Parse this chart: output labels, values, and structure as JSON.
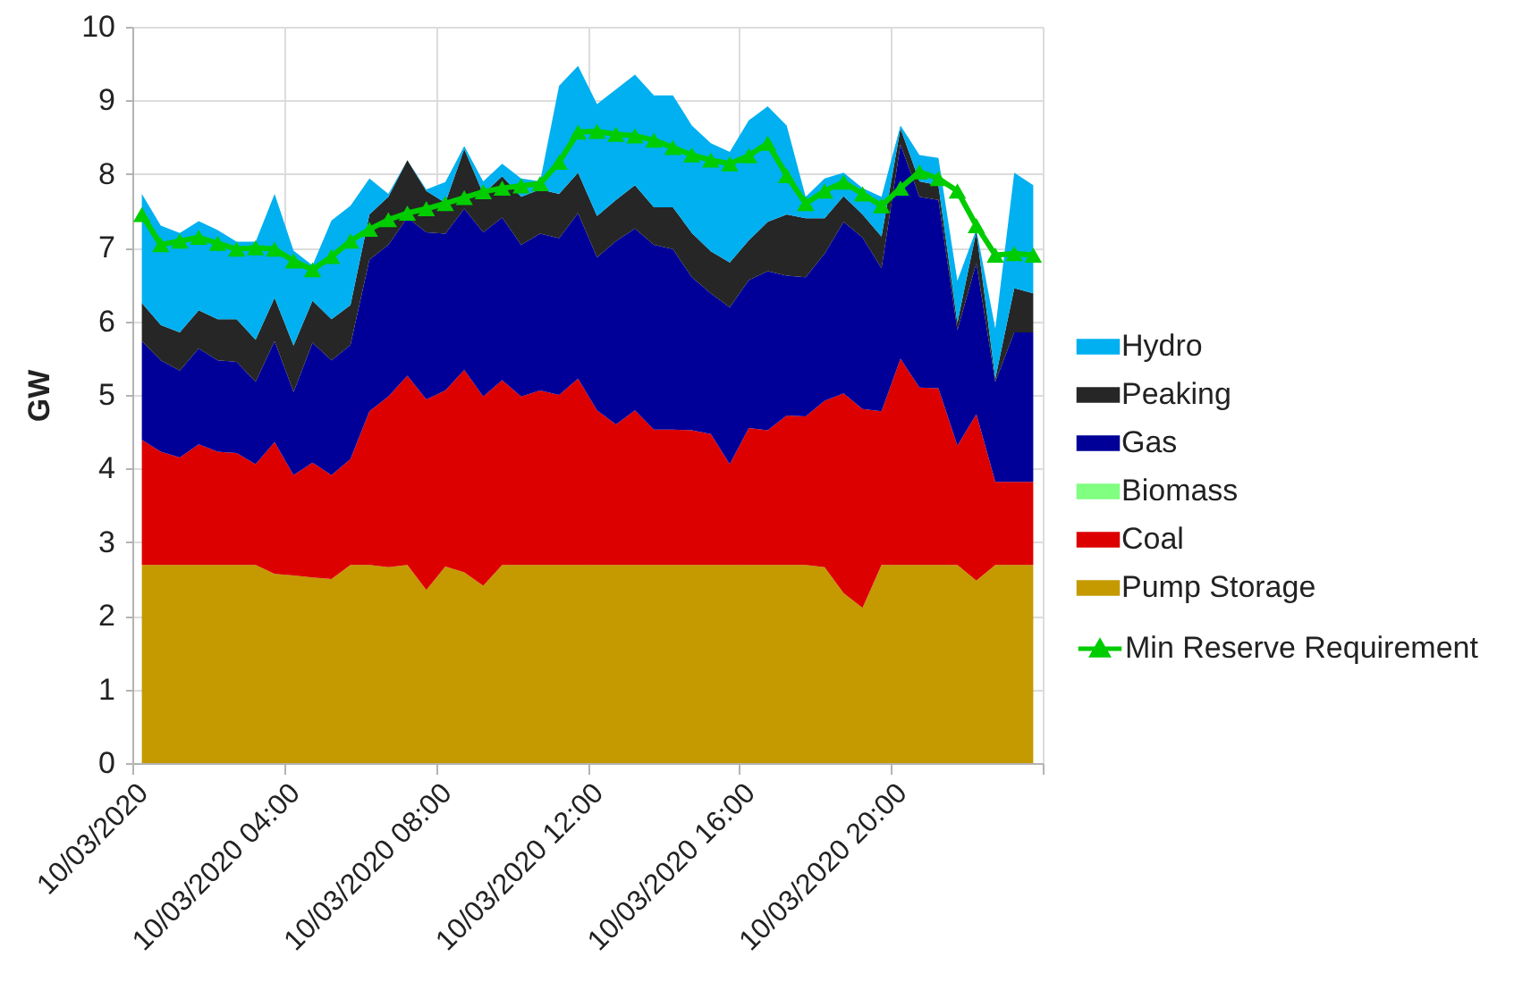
{
  "chart_data": {
    "type": "area",
    "stacked": true,
    "ylabel": "GW",
    "x": [
      "2020-03-10T00:15",
      "2020-03-10T00:45",
      "2020-03-10T01:15",
      "2020-03-10T01:45",
      "2020-03-10T02:15",
      "2020-03-10T02:45",
      "2020-03-10T03:15",
      "2020-03-10T03:45",
      "2020-03-10T04:15",
      "2020-03-10T04:45",
      "2020-03-10T05:15",
      "2020-03-10T05:45",
      "2020-03-10T06:15",
      "2020-03-10T06:45",
      "2020-03-10T07:15",
      "2020-03-10T07:45",
      "2020-03-10T08:15",
      "2020-03-10T08:45",
      "2020-03-10T09:15",
      "2020-03-10T09:45",
      "2020-03-10T10:15",
      "2020-03-10T10:45",
      "2020-03-10T11:15",
      "2020-03-10T11:45",
      "2020-03-10T12:15",
      "2020-03-10T12:45",
      "2020-03-10T13:15",
      "2020-03-10T13:45",
      "2020-03-10T14:15",
      "2020-03-10T14:45",
      "2020-03-10T15:15",
      "2020-03-10T15:45",
      "2020-03-10T16:15",
      "2020-03-10T16:45",
      "2020-03-10T17:15",
      "2020-03-10T17:45",
      "2020-03-10T18:15",
      "2020-03-10T18:45",
      "2020-03-10T19:15",
      "2020-03-10T19:45",
      "2020-03-10T20:15",
      "2020-03-10T20:45",
      "2020-03-10T21:15",
      "2020-03-10T21:45",
      "2020-03-10T22:15",
      "2020-03-10T22:45",
      "2020-03-10T23:15",
      "2020-03-10T23:45"
    ],
    "series": [
      {
        "name": "Pump Storage",
        "color": "#c49a00",
        "values": [
          2.69,
          2.69,
          2.69,
          2.69,
          2.69,
          2.69,
          2.69,
          2.57,
          2.55,
          2.52,
          2.5,
          2.69,
          2.69,
          2.66,
          2.69,
          2.35,
          2.67,
          2.59,
          2.41,
          2.69,
          2.69,
          2.69,
          2.69,
          2.69,
          2.69,
          2.69,
          2.69,
          2.69,
          2.69,
          2.69,
          2.69,
          2.69,
          2.69,
          2.69,
          2.69,
          2.69,
          2.66,
          2.31,
          2.11,
          2.69,
          2.69,
          2.69,
          2.69,
          2.69,
          2.48,
          2.69,
          2.69,
          2.69
        ]
      },
      {
        "name": "Coal",
        "color": "#dc0000",
        "values": [
          1.7,
          1.54,
          1.46,
          1.64,
          1.54,
          1.52,
          1.37,
          1.79,
          1.36,
          1.56,
          1.41,
          1.44,
          2.09,
          2.32,
          2.57,
          2.59,
          2.39,
          2.75,
          2.57,
          2.51,
          2.29,
          2.37,
          2.31,
          2.53,
          2.1,
          1.91,
          2.1,
          1.84,
          1.84,
          1.83,
          1.78,
          1.37,
          1.86,
          1.83,
          2.03,
          2.02,
          2.26,
          2.71,
          2.7,
          2.09,
          2.8,
          2.41,
          2.4,
          1.62,
          2.26,
          1.13,
          1.13,
          1.13
        ]
      },
      {
        "name": "Biomass",
        "color": "#80ff80",
        "values": [
          null,
          null,
          null,
          null,
          null,
          null,
          null,
          null,
          null,
          null,
          null,
          null,
          null,
          null,
          null,
          null,
          null,
          null,
          null,
          null,
          null,
          null,
          null,
          null,
          null,
          null,
          null,
          null,
          null,
          null,
          null,
          null,
          null,
          null,
          null,
          null,
          null,
          null,
          null,
          null,
          null,
          null,
          null,
          null,
          null,
          null,
          null,
          null
        ]
      },
      {
        "name": "Gas",
        "color": "#000099",
        "values": [
          1.34,
          1.24,
          1.18,
          1.3,
          1.24,
          1.24,
          1.12,
          1.37,
          1.13,
          1.63,
          1.56,
          1.55,
          2.06,
          2.06,
          2.15,
          2.27,
          2.13,
          2.19,
          2.23,
          2.21,
          2.06,
          2.13,
          2.13,
          2.25,
          2.08,
          2.49,
          2.47,
          2.51,
          2.45,
          2.08,
          1.91,
          2.13,
          2.01,
          2.16,
          1.9,
          1.89,
          2.0,
          2.33,
          2.33,
          1.94,
          2.91,
          2.59,
          2.56,
          1.57,
          2.05,
          1.36,
          2.03,
          2.03
        ]
      },
      {
        "name": "Peaking",
        "color": "#262626",
        "values": [
          0.52,
          0.48,
          0.52,
          0.52,
          0.56,
          0.58,
          0.57,
          0.59,
          0.63,
          0.57,
          0.56,
          0.54,
          0.61,
          0.65,
          0.78,
          0.56,
          0.42,
          0.81,
          0.52,
          0.56,
          0.65,
          0.6,
          0.6,
          0.55,
          0.56,
          0.56,
          0.59,
          0.51,
          0.57,
          0.6,
          0.57,
          0.61,
          0.54,
          0.67,
          0.83,
          0.8,
          0.48,
          0.35,
          0.31,
          0.43,
          0.22,
          0.21,
          0.2,
          0.1,
          0.43,
          0.04,
          0.6,
          0.53
        ]
      },
      {
        "name": "Hydro",
        "color": "#00b0f0",
        "values": [
          1.48,
          1.35,
          1.35,
          1.21,
          1.21,
          1.05,
          1.33,
          1.41,
          1.29,
          0.48,
          1.34,
          1.35,
          0.49,
          0.04,
          0.0,
          0.02,
          0.28,
          0.04,
          0.17,
          0.17,
          0.25,
          0.11,
          1.47,
          1.45,
          1.52,
          1.5,
          1.5,
          1.52,
          1.52,
          1.46,
          1.47,
          1.5,
          1.63,
          1.57,
          1.21,
          0.29,
          0.54,
          0.32,
          0.36,
          0.54,
          0.04,
          0.36,
          0.37,
          0.57,
          0.03,
          0.68,
          1.57,
          1.47
        ]
      },
      {
        "name": "Min Reserve Requirement",
        "type": "line",
        "color": "#00cc00",
        "marker": "triangle",
        "values": [
          7.45,
          7.04,
          7.09,
          7.14,
          7.06,
          6.98,
          7.0,
          6.98,
          6.82,
          6.7,
          6.88,
          7.09,
          7.25,
          7.38,
          7.47,
          7.53,
          7.6,
          7.68,
          7.76,
          7.81,
          7.84,
          7.87,
          8.16,
          8.57,
          8.58,
          8.54,
          8.52,
          8.46,
          8.36,
          8.26,
          8.19,
          8.14,
          8.25,
          8.42,
          7.98,
          7.6,
          7.77,
          7.89,
          7.73,
          7.57,
          7.81,
          8.03,
          7.94,
          7.77,
          7.3,
          6.9,
          6.92,
          6.9
        ]
      }
    ],
    "xlim": [
      "2020-03-10T00:00",
      "2020-03-11T00:00"
    ],
    "xticks": [
      {
        "value": "2020-03-10T00:00",
        "label": "10/03/2020"
      },
      {
        "value": "2020-03-10T04:00",
        "label": "10/03/2020 04:00"
      },
      {
        "value": "2020-03-10T08:00",
        "label": "10/03/2020 08:00"
      },
      {
        "value": "2020-03-10T12:00",
        "label": "10/03/2020 12:00"
      },
      {
        "value": "2020-03-10T16:00",
        "label": "10/03/2020 16:00"
      },
      {
        "value": "2020-03-10T20:00",
        "label": "10/03/2020 20:00"
      },
      {
        "value": "2020-03-11T00:00",
        "label": null
      }
    ],
    "ylim": [
      0,
      10
    ],
    "yticks": [
      0,
      1,
      2,
      3,
      4,
      5,
      6,
      7,
      8,
      9,
      10
    ],
    "grid": true,
    "legend": "right"
  }
}
